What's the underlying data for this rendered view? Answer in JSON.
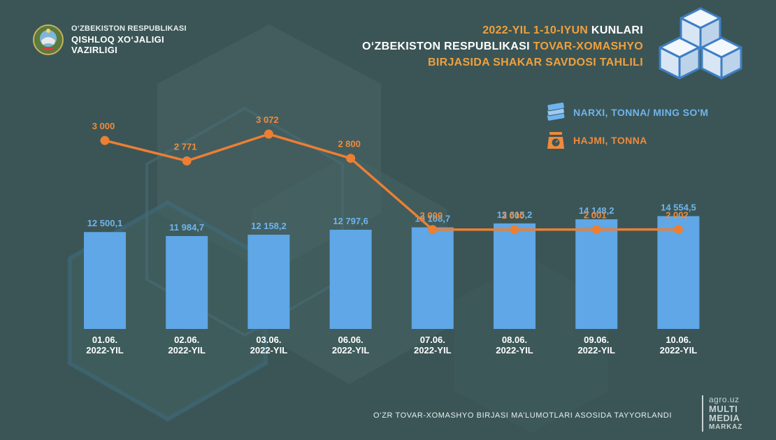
{
  "header": {
    "org_line1": "O‘ZBEKISTON RESPUBLIKASI",
    "org_line2": "QISHLOQ XO‘JALIGI",
    "org_line3": "VAZIRLIGI",
    "title_part1": "2022-YIL 1-10-IYUN",
    "title_part2": " KUNLARI",
    "title_part3": "O‘ZBEKISTON RESPUBLIKASI ",
    "title_part4": "TOVAR-XOMASHYO",
    "title_part5": "BIRJASIDA SHAKAR SAVDOSI TAHLILI"
  },
  "legend": {
    "price_label": "NARXI, TONNA/ MING SO'M",
    "volume_label": "HAJMI, TONNA"
  },
  "footer": {
    "source": "O‘ZR TOVAR-XOMASHYO BIRJASI MA’LUMOTLARI ASOSIDA TAYYORLANDI",
    "brand_url": "agro.uz",
    "brand_line1": "MULTI",
    "brand_line2": "MEDIA",
    "brand_line3": "MARKAZ"
  },
  "colors": {
    "background": "#3b5556",
    "bar": "#5fa7e6",
    "line": "#ec7f33",
    "title_accent": "#f0a03c"
  },
  "chart_data": {
    "type": "bar+line",
    "title": "2022-YIL 1-10-IYUN KUNLARI O‘ZBEKISTON RESPUBLIKASI TOVAR-XOMASHYO BIRJASIDA SHAKAR SAVDOSI TAHLILI",
    "categories": [
      [
        "01.06.",
        "2022-YIL"
      ],
      [
        "02.06.",
        "2022-YIL"
      ],
      [
        "03.06.",
        "2022-YIL"
      ],
      [
        "06.06.",
        "2022-YIL"
      ],
      [
        "07.06.",
        "2022-YIL"
      ],
      [
        "08.06.",
        "2022-YIL"
      ],
      [
        "09.06.",
        "2022-YIL"
      ],
      [
        "10.06.",
        "2022-YIL"
      ]
    ],
    "series": [
      {
        "name": "NARXI, TONNA/ MING SO'M",
        "type": "bar",
        "values": [
          12500.1,
          11984.7,
          12158.2,
          12797.6,
          13108.7,
          13615.2,
          14148.2,
          14554.5
        ],
        "labels": [
          "12 500,1",
          "11 984,7",
          "12 158,2",
          "12 797,6",
          "13 108,7",
          "13 615,2",
          "14 148,2",
          "14 554,5"
        ]
      },
      {
        "name": "HAJMI, TONNA",
        "type": "line",
        "values": [
          3000,
          2771,
          3072,
          2800,
          2000,
          2000,
          2001,
          2002
        ],
        "labels": [
          "3 000",
          "2 771",
          "3 072",
          "2 800",
          "2 000",
          "2 000",
          "2 001",
          "2 002"
        ]
      }
    ],
    "bar_range": [
      0,
      16000
    ],
    "line_range": [
      0,
      3072
    ],
    "grid": false,
    "legend_position": "top-right"
  }
}
